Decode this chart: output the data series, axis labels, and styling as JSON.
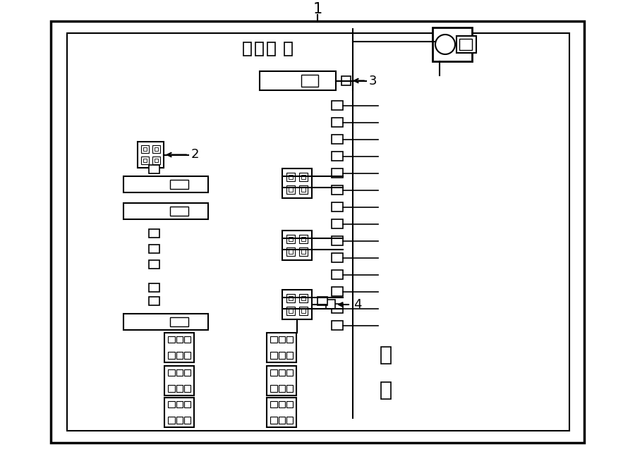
{
  "bg_color": "#ffffff",
  "lc": "#000000",
  "title": "1",
  "label2": "2",
  "label3": "3",
  "label4": "4"
}
